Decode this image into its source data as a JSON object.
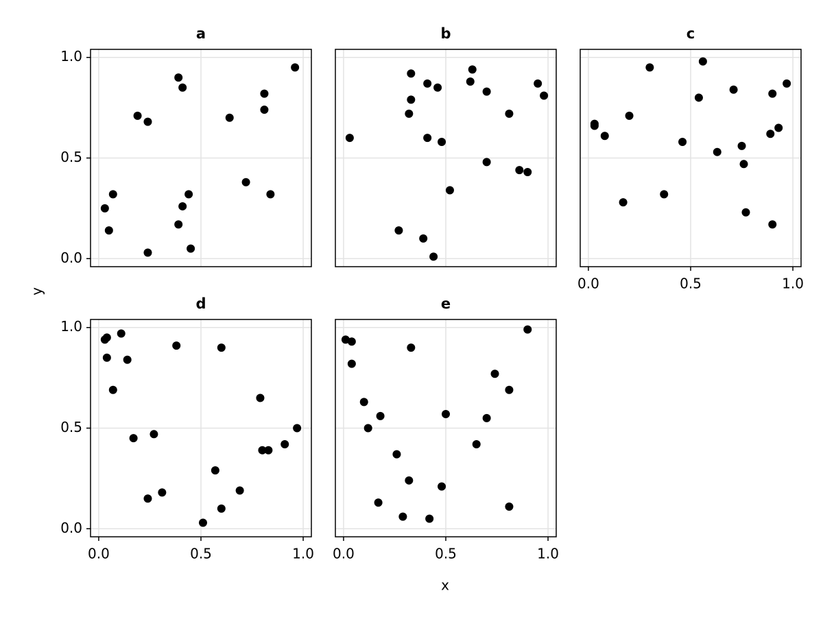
{
  "axis_labels": {
    "x": "x",
    "y": "y"
  },
  "chart_data": [
    {
      "type": "scatter",
      "title": "a",
      "color": "#000000",
      "grid": true,
      "x": [
        0.39,
        0.41,
        0.19,
        0.24,
        0.96,
        0.81,
        0.81,
        0.64,
        0.03,
        0.07,
        0.05,
        0.24,
        0.39,
        0.41,
        0.44,
        0.45,
        0.72,
        0.84
      ],
      "y": [
        0.9,
        0.85,
        0.71,
        0.68,
        0.95,
        0.82,
        0.74,
        0.7,
        0.25,
        0.32,
        0.14,
        0.03,
        0.17,
        0.26,
        0.32,
        0.05,
        0.38,
        0.32
      ],
      "xlim": [
        -0.04,
        1.04
      ],
      "ylim": [
        -0.04,
        1.04
      ],
      "xticks": [
        0,
        0.5,
        1
      ],
      "yticks": [
        {
          "value": 0,
          "label": "0.0"
        },
        {
          "value": 0.5,
          "label": "0.5"
        },
        {
          "value": 1,
          "label": "1.0"
        }
      ]
    },
    {
      "type": "scatter",
      "title": "b",
      "color": "#000000",
      "grid": true,
      "x": [
        0.03,
        0.33,
        0.41,
        0.46,
        0.33,
        0.32,
        0.41,
        0.48,
        0.63,
        0.62,
        0.7,
        0.81,
        0.95,
        0.98,
        0.7,
        0.86,
        0.9,
        0.52,
        0.27,
        0.39,
        0.44
      ],
      "y": [
        0.6,
        0.92,
        0.87,
        0.85,
        0.79,
        0.72,
        0.6,
        0.58,
        0.94,
        0.88,
        0.83,
        0.72,
        0.87,
        0.81,
        0.48,
        0.44,
        0.43,
        0.34,
        0.14,
        0.1,
        0.01
      ],
      "xlim": [
        -0.04,
        1.04
      ],
      "ylim": [
        -0.04,
        1.04
      ],
      "xticks": [
        0,
        0.5,
        1
      ],
      "yticks": [
        0,
        0.5,
        1
      ]
    },
    {
      "type": "scatter",
      "title": "c",
      "color": "#000000",
      "grid": true,
      "x": [
        0.03,
        0.03,
        0.08,
        0.2,
        0.3,
        0.56,
        0.54,
        0.71,
        0.9,
        0.97,
        0.46,
        0.63,
        0.75,
        0.76,
        0.89,
        0.93,
        0.17,
        0.37,
        0.77,
        0.9
      ],
      "y": [
        0.67,
        0.66,
        0.61,
        0.71,
        0.95,
        0.98,
        0.8,
        0.84,
        0.82,
        0.87,
        0.58,
        0.53,
        0.56,
        0.47,
        0.62,
        0.65,
        0.28,
        0.32,
        0.23,
        0.17
      ],
      "xlim": [
        -0.04,
        1.04
      ],
      "ylim": [
        -0.04,
        1.04
      ],
      "xticks": [
        {
          "value": 0,
          "label": "0.0"
        },
        {
          "value": 0.5,
          "label": "0.5"
        },
        {
          "value": 1,
          "label": "1.0"
        }
      ],
      "yticks": [
        0,
        0.5,
        1
      ]
    },
    {
      "type": "scatter",
      "title": "d",
      "color": "#000000",
      "grid": true,
      "x": [
        0.04,
        0.03,
        0.11,
        0.04,
        0.14,
        0.07,
        0.38,
        0.6,
        0.17,
        0.27,
        0.79,
        0.97,
        0.8,
        0.83,
        0.91,
        0.57,
        0.69,
        0.6,
        0.31,
        0.24,
        0.51
      ],
      "y": [
        0.95,
        0.94,
        0.97,
        0.85,
        0.84,
        0.69,
        0.91,
        0.9,
        0.45,
        0.47,
        0.65,
        0.5,
        0.39,
        0.39,
        0.42,
        0.29,
        0.19,
        0.1,
        0.18,
        0.15,
        0.03
      ],
      "xlim": [
        -0.04,
        1.04
      ],
      "ylim": [
        -0.04,
        1.04
      ],
      "xticks": [
        {
          "value": 0,
          "label": "0.0"
        },
        {
          "value": 0.5,
          "label": "0.5"
        },
        {
          "value": 1,
          "label": "1.0"
        }
      ],
      "yticks": [
        {
          "value": 0,
          "label": "0.0"
        },
        {
          "value": 0.5,
          "label": "0.5"
        },
        {
          "value": 1,
          "label": "1.0"
        }
      ]
    },
    {
      "type": "scatter",
      "title": "e",
      "color": "#000000",
      "grid": true,
      "x": [
        0.01,
        0.04,
        0.04,
        0.33,
        0.9,
        0.1,
        0.18,
        0.12,
        0.5,
        0.74,
        0.81,
        0.7,
        0.65,
        0.26,
        0.32,
        0.48,
        0.17,
        0.29,
        0.42,
        0.81
      ],
      "y": [
        0.94,
        0.93,
        0.82,
        0.9,
        0.99,
        0.63,
        0.56,
        0.5,
        0.57,
        0.77,
        0.69,
        0.55,
        0.42,
        0.37,
        0.24,
        0.21,
        0.13,
        0.06,
        0.05,
        0.11
      ],
      "xlim": [
        -0.04,
        1.04
      ],
      "ylim": [
        -0.04,
        1.04
      ],
      "xticks": [
        {
          "value": 0,
          "label": "0.0"
        },
        {
          "value": 0.5,
          "label": "0.5"
        },
        {
          "value": 1,
          "label": "1.0"
        }
      ],
      "yticks": [
        0,
        0.5,
        1
      ]
    }
  ]
}
